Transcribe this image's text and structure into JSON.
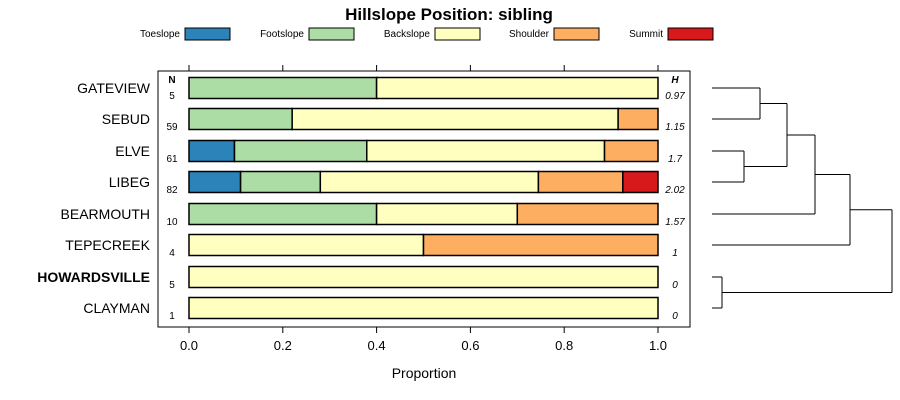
{
  "chart_data": {
    "type": "bar",
    "orientation": "horizontal",
    "stacked": true,
    "title": "Hillslope Position: sibling",
    "xlabel": "Proportion",
    "xlim": [
      0,
      1
    ],
    "x_ticks": [
      "0.0",
      "0.2",
      "0.4",
      "0.6",
      "0.8",
      "1.0"
    ],
    "n_header": "N",
    "h_header": "H",
    "legend_position": "top",
    "categories": [
      "GATEVIEW",
      "SEBUD",
      "ELVE",
      "LIBEG",
      "BEARMOUTH",
      "TEPECREEK",
      "HOWARDSVILLE",
      "CLAYMAN"
    ],
    "highlighted": "HOWARDSVILLE",
    "n": [
      "5",
      "59",
      "61",
      "82",
      "10",
      "4",
      "5",
      "1"
    ],
    "h": [
      "0.97",
      "1.15",
      "1.7",
      "2.02",
      "1.57",
      "1",
      "0",
      "0"
    ],
    "series": [
      {
        "name": "Toeslope",
        "color": "#2b83ba",
        "values": [
          0,
          0,
          0.097,
          0.11,
          0,
          0,
          0,
          0
        ]
      },
      {
        "name": "Footslope",
        "color": "#abdda4",
        "values": [
          0.4,
          0.22,
          0.282,
          0.17,
          0.4,
          0,
          0,
          0
        ]
      },
      {
        "name": "Backslope",
        "color": "#ffffbf",
        "values": [
          0.6,
          0.695,
          0.507,
          0.465,
          0.3,
          0.5,
          1,
          1
        ]
      },
      {
        "name": "Shoulder",
        "color": "#fdae61",
        "values": [
          0,
          0.085,
          0.114,
          0.18,
          0.3,
          0.5,
          0,
          0
        ]
      },
      {
        "name": "Summit",
        "color": "#d7191c",
        "values": [
          0,
          0,
          0,
          0.075,
          0,
          0,
          0,
          0
        ]
      }
    ],
    "dendrogram": "hierarchical clustering of rows"
  }
}
